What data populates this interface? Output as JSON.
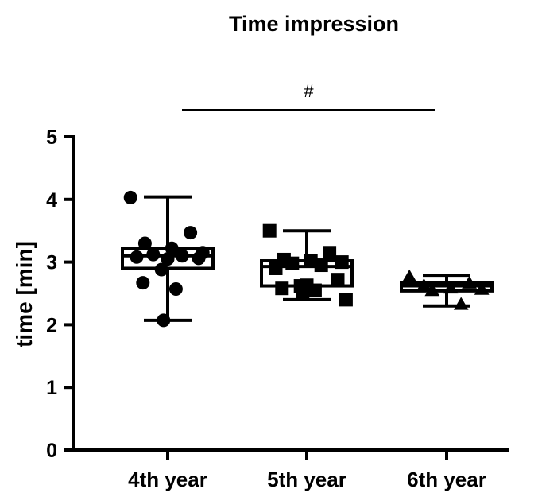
{
  "chart_data": {
    "type": "box-scatter",
    "title": "Time impression",
    "ylabel": "time [min]",
    "xlabel": "",
    "categories": [
      "4th year",
      "5th year",
      "6th year"
    ],
    "ylim": [
      0,
      5
    ],
    "yticks": [
      0,
      1,
      2,
      3,
      4,
      5
    ],
    "grid": false,
    "legend": "none",
    "significance": {
      "label": "#",
      "from": "4th year",
      "to": "6th year"
    },
    "series": [
      {
        "category": "4th year",
        "marker": "circle",
        "box": {
          "min": 2.07,
          "q1": 2.9,
          "median": 3.1,
          "q3": 3.22,
          "max": 4.04
        },
        "points": [
          4.03,
          3.47,
          3.3,
          3.22,
          3.15,
          3.12,
          3.1,
          3.08,
          3.06,
          3.05,
          2.88,
          2.67,
          2.57,
          2.07
        ]
      },
      {
        "category": "5th year",
        "marker": "square",
        "box": {
          "min": 2.4,
          "q1": 2.62,
          "median": 2.93,
          "q3": 3.02,
          "max": 3.5
        },
        "points": [
          3.5,
          3.15,
          3.04,
          3.02,
          3.0,
          2.98,
          2.95,
          2.9,
          2.72,
          2.63,
          2.62,
          2.58,
          2.55,
          2.5,
          2.4
        ]
      },
      {
        "category": "6th year",
        "marker": "triangle",
        "box": {
          "min": 2.3,
          "q1": 2.54,
          "median": 2.62,
          "q3": 2.67,
          "max": 2.79
        },
        "points": [
          2.76,
          2.66,
          2.62,
          2.58,
          2.56,
          2.54,
          2.32
        ]
      }
    ]
  }
}
